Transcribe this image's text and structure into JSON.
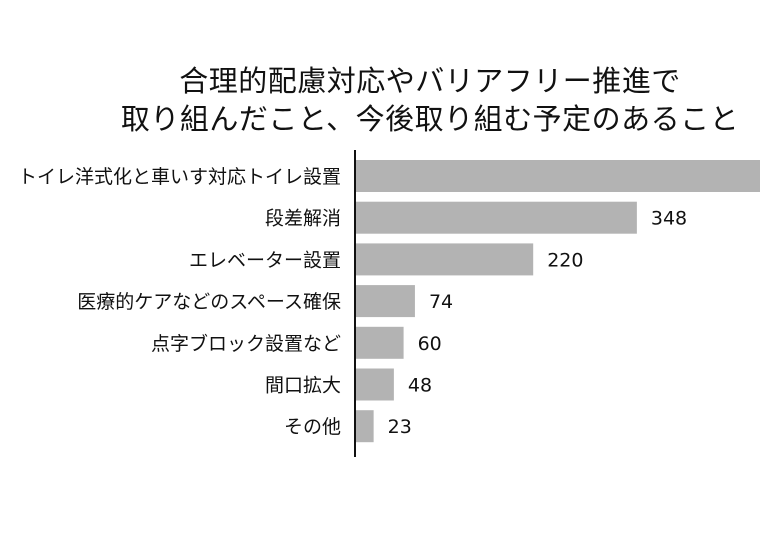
{
  "chart_data": {
    "type": "bar",
    "orientation": "horizontal",
    "title": [
      "合理的配慮対応やバリアフリー推進で",
      "取り組んだこと、今後取り組む予定のあること"
    ],
    "categories": [
      "トイレ洋式化と車いす対応トイレ設置",
      "段差解消",
      "エレベーター設置",
      "医療的ケアなどのスペース確保",
      "点字ブロック設置など",
      "間口拡大",
      "その他"
    ],
    "values": [
      500,
      348,
      220,
      74,
      60,
      48,
      23
    ],
    "data_labels": [
      "",
      "348",
      "220",
      "74",
      "60",
      "48",
      "23"
    ],
    "xlim": [
      0,
      500
    ],
    "bar_color": "#b3b3b3",
    "axis_color": "#111111",
    "grid": false,
    "legend": "none"
  }
}
